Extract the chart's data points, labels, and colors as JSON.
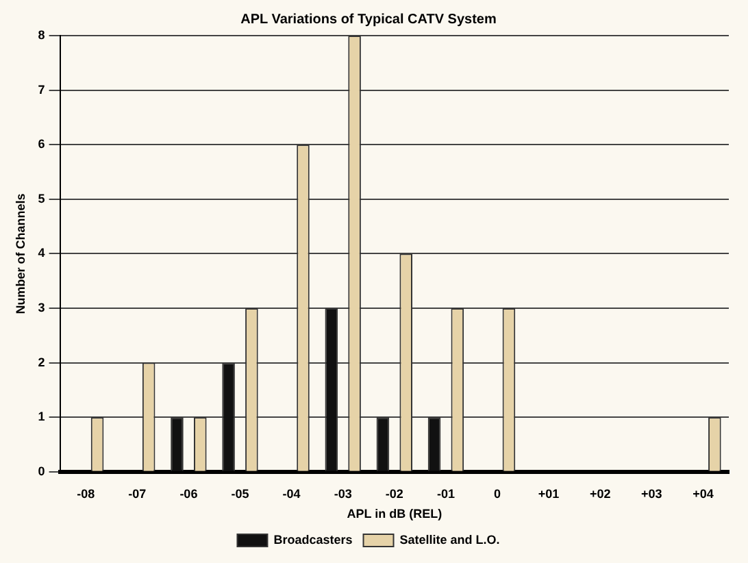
{
  "chart_data": {
    "type": "bar",
    "title": "APL Variations of Typical CATV System",
    "xlabel": "APL in dB (REL)",
    "ylabel": "Number of Channels",
    "categories": [
      "-08",
      "-07",
      "-06",
      "-05",
      "-04",
      "-03",
      "-02",
      "-01",
      "0",
      "+01",
      "+02",
      "+03",
      "+04"
    ],
    "series": [
      {
        "name": "Broadcasters",
        "color": "#111111",
        "values": [
          0,
          0,
          1,
          2,
          0,
          3,
          1,
          1,
          0,
          0,
          0,
          0,
          0
        ]
      },
      {
        "name": "Satellite and L.O.",
        "color": "#e6d3a8",
        "values": [
          1,
          2,
          1,
          3,
          6,
          8,
          4,
          3,
          3,
          0,
          0,
          0,
          1
        ]
      }
    ],
    "ylim": [
      0,
      8
    ],
    "yticks": [
      0,
      1,
      2,
      3,
      4,
      5,
      6,
      7,
      8
    ],
    "grid": "y",
    "legend": "bottom"
  }
}
